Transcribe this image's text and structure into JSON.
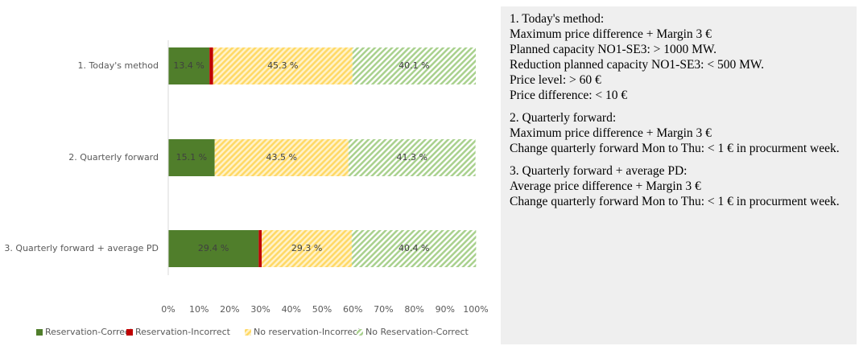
{
  "chart_data": {
    "type": "stacked-bar-horizontal",
    "categories": [
      "1. Today's method",
      "2. Quarterly forward",
      "3. Quarterly forward + average PD"
    ],
    "series": [
      {
        "name": "Reservation-Correct",
        "color": "#507e2b",
        "pattern": "solid",
        "values": [
          13.4,
          15.1,
          29.4
        ],
        "value_labels": [
          "13.4 %",
          "15.1 %",
          "29.4 %"
        ]
      },
      {
        "name": "Reservation-Incorrect",
        "color": "#c00000",
        "pattern": "solid",
        "values": [
          1.2,
          0.0,
          1.0
        ],
        "value_labels": [
          "1.2 %",
          "0.0 %",
          "1.0 %"
        ]
      },
      {
        "name": "No reservation-Incorrect",
        "color": "#ffd966",
        "pattern": "hatch",
        "values": [
          45.3,
          43.5,
          29.3
        ],
        "value_labels": [
          "45.3 %",
          "43.5 %",
          "29.3 %"
        ]
      },
      {
        "name": "No Reservation-Correct",
        "color": "#a9d18e",
        "pattern": "hatch",
        "values": [
          40.1,
          41.3,
          40.4
        ],
        "value_labels": [
          "40.1 %",
          "41.3 %",
          "40.4 %"
        ]
      }
    ],
    "xlim": [
      0,
      100
    ],
    "xticks": [
      {
        "value": 0,
        "label": "0%"
      },
      {
        "value": 10,
        "label": "10%"
      },
      {
        "value": 20,
        "label": "20%"
      },
      {
        "value": 30,
        "label": "30%"
      },
      {
        "value": 40,
        "label": "40%"
      },
      {
        "value": 50,
        "label": "50%"
      },
      {
        "value": 60,
        "label": "60%"
      },
      {
        "value": 70,
        "label": "70%"
      },
      {
        "value": 80,
        "label": "80%"
      },
      {
        "value": 90,
        "label": "90%"
      },
      {
        "value": 100,
        "label": "100%"
      }
    ],
    "legend": "bottom"
  },
  "panel": {
    "sections": [
      {
        "lines": [
          "1. Today's method:",
          "Maximum price difference + Margin 3 €",
          "Planned capacity NO1-SE3: > 1000 MW.",
          "Reduction planned capacity NO1-SE3: < 500 MW.",
          "Price level: > 60 €",
          "Price difference: < 10 €"
        ]
      },
      {
        "lines": [
          "2. Quarterly forward:",
          "Maximum price difference + Margin 3 €",
          "Change quarterly forward Mon to Thu: < 1 € in procurment week."
        ]
      },
      {
        "lines": [
          "3. Quarterly forward + average PD:",
          "Average price difference + Margin 3 €",
          "Change quarterly forward Mon to Thu: < 1 € in procurment week."
        ]
      }
    ]
  }
}
